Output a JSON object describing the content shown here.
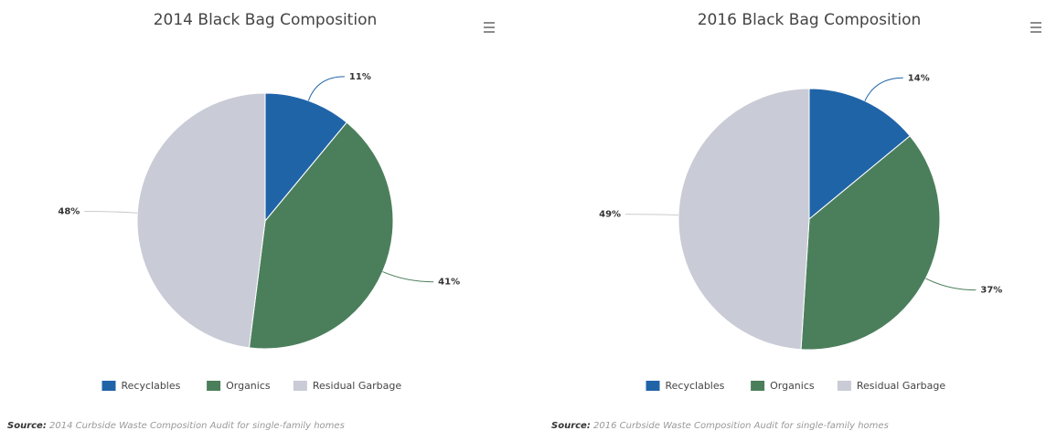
{
  "chart_data": [
    {
      "type": "pie",
      "title": "2014 Black Bag Composition",
      "categories": [
        "Recyclables",
        "Organics",
        "Residual Garbage"
      ],
      "values": [
        11,
        41,
        48
      ],
      "value_labels": [
        "11%",
        "41%",
        "48%"
      ],
      "colors": [
        "#2064a8",
        "#4b7f5c",
        "#c9cbd6"
      ],
      "source_label": "Source:",
      "source": "2014 Curbside Waste Composition Audit for single-family homes"
    },
    {
      "type": "pie",
      "title": "2016 Black Bag Composition",
      "categories": [
        "Recyclables",
        "Organics",
        "Residual Garbage"
      ],
      "values": [
        14,
        37,
        49
      ],
      "value_labels": [
        "14%",
        "37%",
        "49%"
      ],
      "colors": [
        "#2064a8",
        "#4b7f5c",
        "#c9cbd6"
      ],
      "source_label": "Source:",
      "source": "2016 Curbside Waste Composition Audit for single-family homes"
    }
  ]
}
